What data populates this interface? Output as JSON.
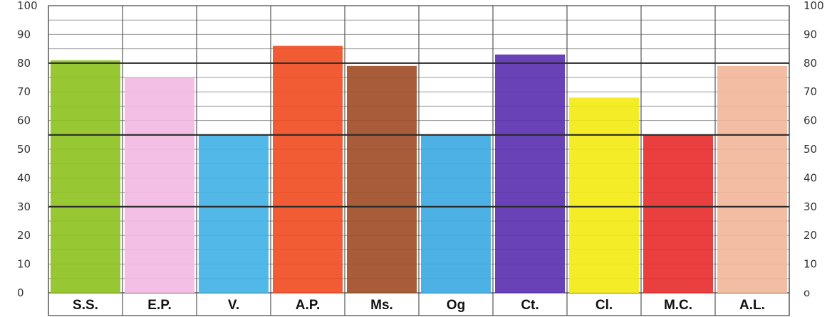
{
  "chart_data": {
    "type": "bar",
    "categories": [
      "S.S.",
      "E.P.",
      "V.",
      "A.P.",
      "Ms.",
      "Og",
      "Ct.",
      "Cl.",
      "M.C.",
      "A.L."
    ],
    "values": [
      81,
      75,
      55,
      86,
      79,
      55,
      83,
      68,
      55,
      79
    ],
    "colors": [
      "#8cc21e",
      "#f2b8e2",
      "#3fb0e6",
      "#f04a1e",
      "#9e4a24",
      "#3aa8e2",
      "#5a2eb0",
      "#f2ea10",
      "#e82a2a",
      "#f2b69a"
    ],
    "y_ticks": [
      "0",
      "10",
      "20",
      "30",
      "40",
      "50",
      "60",
      "70",
      "80",
      "90",
      "100"
    ],
    "right_ticks": [
      "o",
      "10",
      "20",
      "30",
      "40",
      "50",
      "60",
      "70",
      "80",
      "90",
      "100"
    ],
    "ylim": [
      0,
      100
    ],
    "grid": true,
    "title": "",
    "xlabel": "",
    "ylabel": ""
  }
}
